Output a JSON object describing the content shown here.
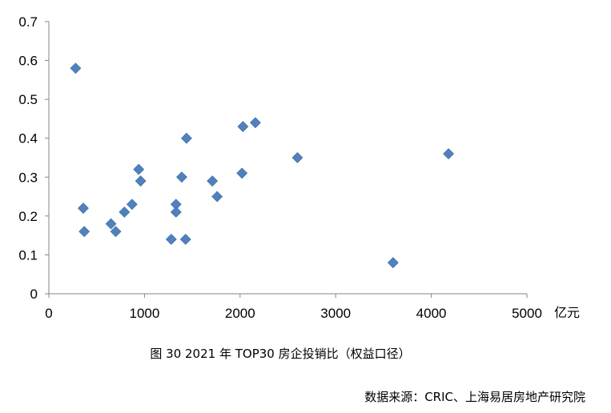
{
  "chart_data": {
    "type": "scatter",
    "title": "",
    "xlabel": "",
    "ylabel": "",
    "x_unit_label": "亿元",
    "xlim": [
      0,
      5000
    ],
    "ylim": [
      0,
      0.7
    ],
    "x_ticks": [
      "0",
      "1000",
      "2000",
      "3000",
      "4000",
      "5000"
    ],
    "y_ticks": [
      "0",
      "0.1",
      "0.2",
      "0.3",
      "0.4",
      "0.5",
      "0.6",
      "0.7"
    ],
    "x_tick_values": [
      0,
      1000,
      2000,
      3000,
      4000,
      5000
    ],
    "y_tick_values": [
      0,
      0.1,
      0.2,
      0.3,
      0.4,
      0.5,
      0.6,
      0.7
    ],
    "grid": false,
    "legend": "none",
    "marker": "diamond",
    "marker_color": "#4F81BD",
    "points": [
      {
        "x": 280,
        "y": 0.58
      },
      {
        "x": 360,
        "y": 0.22
      },
      {
        "x": 370,
        "y": 0.16
      },
      {
        "x": 650,
        "y": 0.18
      },
      {
        "x": 700,
        "y": 0.16
      },
      {
        "x": 790,
        "y": 0.21
      },
      {
        "x": 870,
        "y": 0.23
      },
      {
        "x": 940,
        "y": 0.32
      },
      {
        "x": 960,
        "y": 0.29
      },
      {
        "x": 1280,
        "y": 0.14
      },
      {
        "x": 1330,
        "y": 0.23
      },
      {
        "x": 1330,
        "y": 0.21
      },
      {
        "x": 1390,
        "y": 0.3
      },
      {
        "x": 1430,
        "y": 0.14
      },
      {
        "x": 1440,
        "y": 0.4
      },
      {
        "x": 1710,
        "y": 0.29
      },
      {
        "x": 1760,
        "y": 0.25
      },
      {
        "x": 2020,
        "y": 0.31
      },
      {
        "x": 2030,
        "y": 0.43
      },
      {
        "x": 2160,
        "y": 0.44
      },
      {
        "x": 2600,
        "y": 0.35
      },
      {
        "x": 3600,
        "y": 0.08
      },
      {
        "x": 4180,
        "y": 0.36
      }
    ]
  },
  "caption": "图 30 2021 年 TOP30 房企投销比（权益口径）",
  "source": "数据来源：CRIC、上海易居房地产研究院"
}
